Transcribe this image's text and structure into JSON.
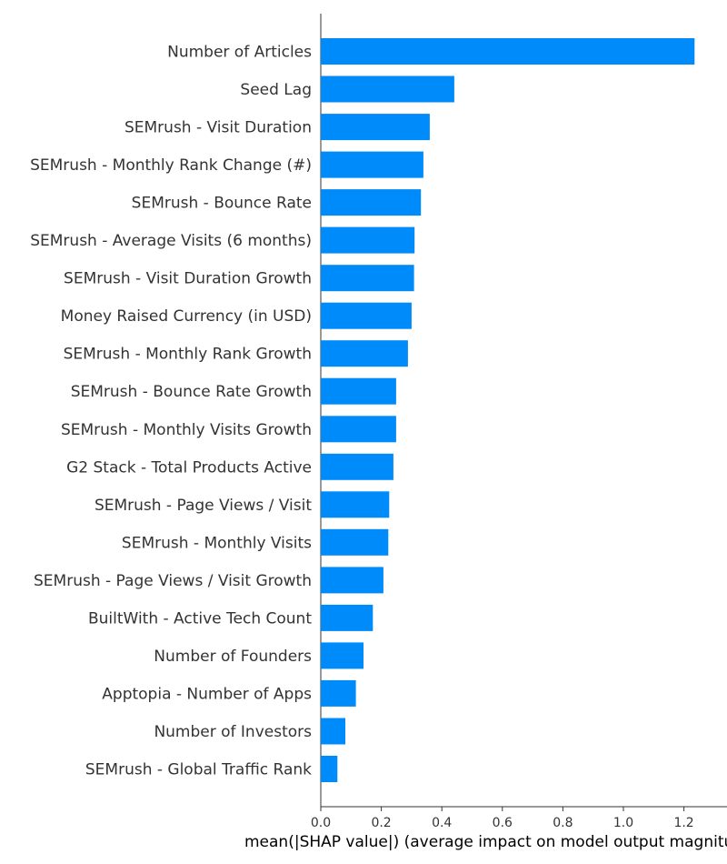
{
  "chart_data": {
    "type": "bar",
    "orientation": "horizontal",
    "categories": [
      "Number of Articles",
      "Seed Lag",
      "SEMrush - Visit Duration",
      "SEMrush - Monthly Rank Change (#)",
      "SEMrush - Bounce Rate",
      "SEMrush - Average Visits (6 months)",
      "SEMrush - Visit Duration Growth",
      "Money Raised Currency (in USD)",
      "SEMrush - Monthly Rank Growth",
      "SEMrush - Bounce Rate Growth",
      "SEMrush - Monthly Visits Growth",
      "G2 Stack - Total Products Active",
      "SEMrush - Page Views / Visit",
      "SEMrush - Monthly Visits",
      "SEMrush - Page Views / Visit Growth",
      "BuiltWith - Active Tech Count",
      "Number of Founders",
      "Apptopia - Number of Apps",
      "Number of Investors",
      "SEMrush - Global Traffic Rank"
    ],
    "values": [
      1.235,
      0.441,
      0.36,
      0.339,
      0.331,
      0.31,
      0.308,
      0.3,
      0.288,
      0.249,
      0.249,
      0.24,
      0.226,
      0.223,
      0.207,
      0.172,
      0.141,
      0.116,
      0.081,
      0.055
    ],
    "xticks": [
      "0.0",
      "0.2",
      "0.4",
      "0.6",
      "0.8",
      "1.0",
      "1.2"
    ],
    "xtick_values": [
      0,
      0.2,
      0.4,
      0.6,
      0.8,
      1.0,
      1.2
    ],
    "xlim": [
      0,
      1.3
    ],
    "xlabel": "mean(|SHAP value|) (average impact on model output magnitude)",
    "bar_color": "#008bfb",
    "grid": false
  }
}
